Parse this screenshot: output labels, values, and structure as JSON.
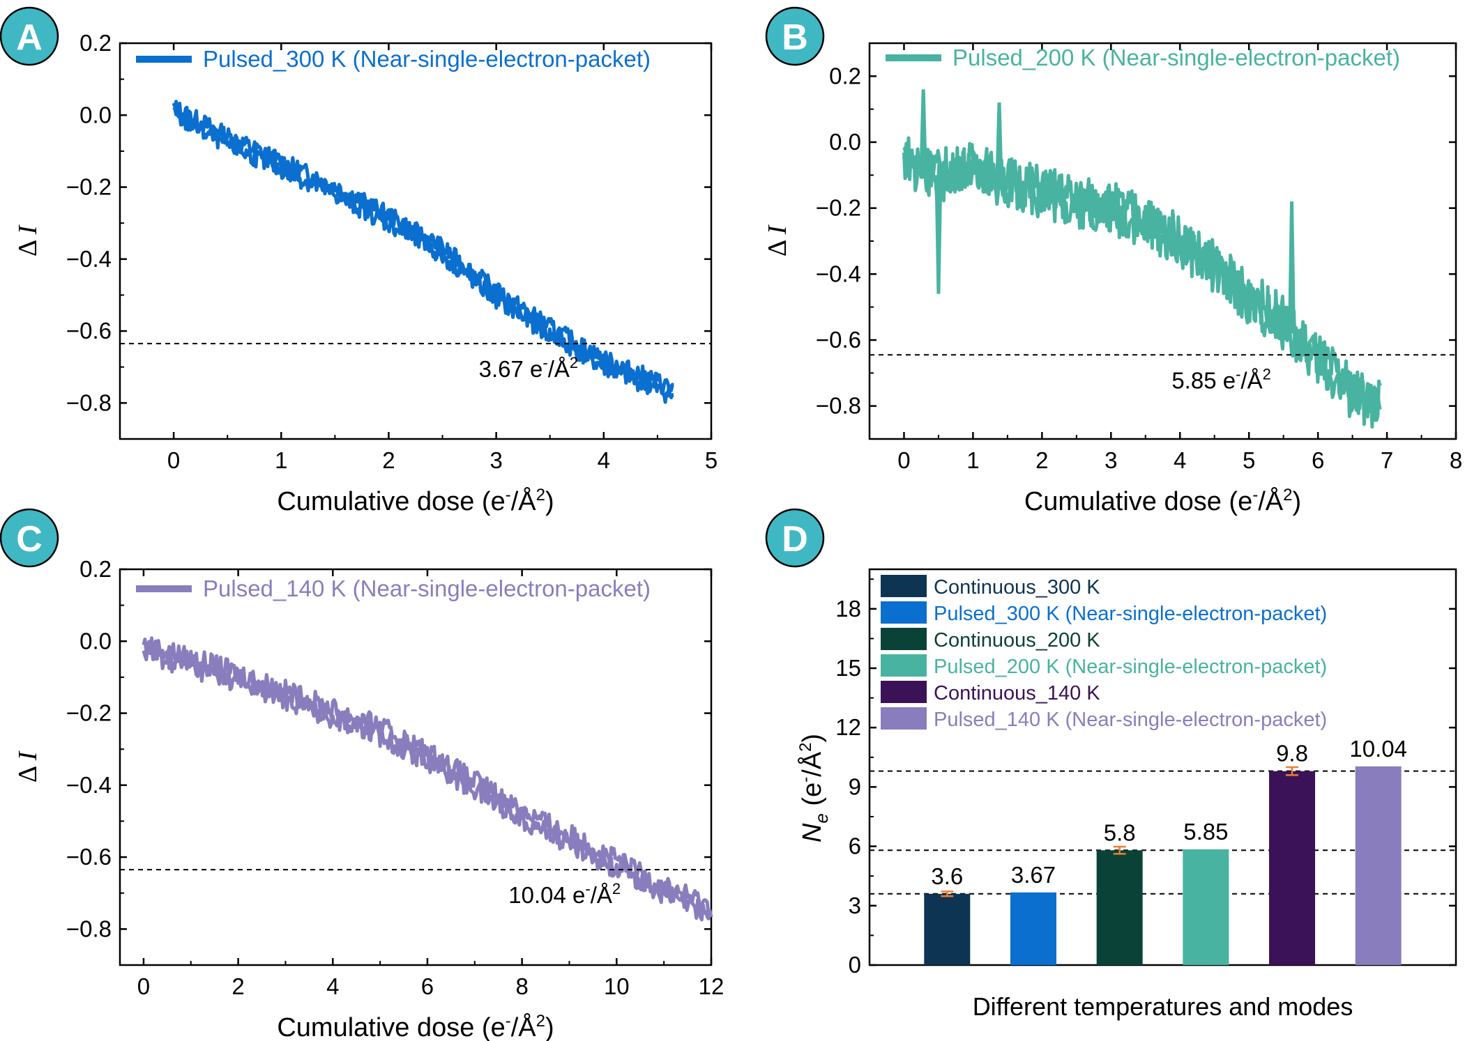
{
  "figure": {
    "panels": [
      {
        "badge": "A",
        "badge_color": "#3fb8c4",
        "sup_unit": "2"
      },
      {
        "badge": "B",
        "badge_color": "#3fb8c4",
        "sup_unit": "2"
      },
      {
        "badge": "C",
        "badge_color": "#3fb8c4",
        "sup_unit": "2"
      },
      {
        "badge": "D",
        "badge_color": "#3fb8c4"
      }
    ]
  },
  "chart_data": [
    {
      "type": "line",
      "panel": "A",
      "xlabel": "Cumulative dose (e⁻/Å²)",
      "ylabel": "Δ I",
      "xlim": [
        -0.5,
        5
      ],
      "ylim": [
        -0.9,
        0.2
      ],
      "xticks": [
        0,
        1,
        2,
        3,
        4,
        5
      ],
      "yticks": [
        0.2,
        0.0,
        -0.2,
        -0.4,
        -0.6,
        -0.8
      ],
      "xtick_labels": [
        "0",
        "1",
        "2",
        "3",
        "4",
        "5"
      ],
      "ytick_labels": [
        "0.2",
        "0.0",
        "−0.2",
        "−0.4",
        "−0.6",
        "−0.8"
      ],
      "threshold_y": -0.635,
      "annotation": {
        "text": "3.67 e",
        "sup1": "-",
        "mid": "/Å",
        "sup2": "2"
      },
      "series": [
        {
          "name": "Pulsed_300 K (Near-single-electron-packet)",
          "color": "#0a6fcf",
          "x": [
            0,
            0.5,
            1.0,
            1.5,
            2.0,
            2.5,
            3.0,
            3.5,
            4.0,
            4.65
          ],
          "y": [
            0.01,
            -0.07,
            -0.14,
            -0.21,
            -0.29,
            -0.38,
            -0.5,
            -0.6,
            -0.69,
            -0.77
          ],
          "noise": 0.025
        }
      ],
      "legend": "top-right"
    },
    {
      "type": "line",
      "panel": "B",
      "xlabel": "Cumulative dose (e⁻/Å²)",
      "ylabel": "Δ I",
      "xlim": [
        -0.5,
        8
      ],
      "ylim": [
        -0.9,
        0.3
      ],
      "xticks": [
        0,
        1,
        2,
        3,
        4,
        5,
        6,
        7,
        8
      ],
      "yticks": [
        0.2,
        0.0,
        -0.2,
        -0.4,
        -0.6,
        -0.8
      ],
      "xtick_labels": [
        "0",
        "1",
        "2",
        "3",
        "4",
        "5",
        "6",
        "7",
        "8"
      ],
      "ytick_labels": [
        "0.2",
        "0.0",
        "−0.2",
        "−0.4",
        "−0.6",
        "−0.8"
      ],
      "threshold_y": -0.645,
      "annotation": {
        "text": "5.85 e",
        "sup1": "-",
        "mid": "/Å",
        "sup2": "2"
      },
      "series": [
        {
          "name": "Pulsed_200 K (Near-single-electron-packet)",
          "color": "#48b3a0",
          "x": [
            0,
            0.5,
            1.0,
            1.5,
            2.0,
            2.5,
            3.0,
            3.5,
            4.0,
            4.5,
            5.0,
            5.5,
            6.0,
            6.5,
            6.9
          ],
          "y": [
            -0.05,
            -0.1,
            -0.08,
            -0.12,
            -0.15,
            -0.18,
            -0.2,
            -0.24,
            -0.3,
            -0.38,
            -0.47,
            -0.55,
            -0.66,
            -0.76,
            -0.8
          ],
          "noise": 0.07
        }
      ],
      "legend": "top-right"
    },
    {
      "type": "line",
      "panel": "C",
      "xlabel": "Cumulative dose (e⁻/Å²)",
      "ylabel": "Δ I",
      "xlim": [
        -0.5,
        12
      ],
      "ylim": [
        -0.9,
        0.2
      ],
      "xticks": [
        0,
        2,
        4,
        6,
        8,
        10,
        12
      ],
      "yticks": [
        0.2,
        0.0,
        -0.2,
        -0.4,
        -0.6,
        -0.8
      ],
      "xtick_labels": [
        "0",
        "2",
        "4",
        "6",
        "8",
        "10",
        "12"
      ],
      "ytick_labels": [
        "0.2",
        "0.0",
        "−0.2",
        "−0.4",
        "−0.6",
        "−0.8"
      ],
      "threshold_y": -0.635,
      "annotation": {
        "text": "10.04 e",
        "sup1": "-",
        "mid": "/Å",
        "sup2": "2"
      },
      "series": [
        {
          "name": "Pulsed_140 K (Near-single-electron-packet)",
          "color": "#8a7dbd",
          "x": [
            0,
            1,
            2,
            3,
            4,
            5,
            6,
            7,
            8,
            9,
            10,
            11,
            12
          ],
          "y": [
            -0.02,
            -0.06,
            -0.1,
            -0.15,
            -0.2,
            -0.25,
            -0.32,
            -0.4,
            -0.48,
            -0.55,
            -0.62,
            -0.69,
            -0.75
          ],
          "noise": 0.03
        }
      ],
      "legend": "top-right"
    },
    {
      "type": "bar",
      "panel": "D",
      "xlabel": "Different temperatures and modes",
      "ylabel": "N",
      "ylabel_sub": "e",
      "ylabel_unit": "(e",
      "ylabel_unit_sup": "-",
      "ylabel_unit_mid": "/Å",
      "ylabel_unit_sup2": "2",
      "ylabel_unit_end": ")",
      "ylim": [
        0,
        20
      ],
      "yticks": [
        0,
        3,
        6,
        9,
        12,
        15,
        18
      ],
      "ytick_labels": [
        "0",
        "3",
        "6",
        "9",
        "12",
        "15",
        "18"
      ],
      "thresholds": [
        3.6,
        5.8,
        9.8
      ],
      "categories": [
        "Continuous_300 K",
        "Pulsed_300 K (Near-single-electron-packet)",
        "Continuous_200 K",
        "Pulsed_200 K (Near-single-electron-packet)",
        "Continuous_140 K",
        "Pulsed_140 K (Near-single-electron-packet)"
      ],
      "values": [
        3.6,
        3.67,
        5.8,
        5.85,
        9.8,
        10.04
      ],
      "value_labels": [
        "3.6",
        "3.67",
        "5.8",
        "5.85",
        "9.8",
        "10.04"
      ],
      "error": [
        0.12,
        null,
        0.18,
        null,
        0.2,
        null
      ],
      "error_color": "#f07e2e",
      "colors": [
        "#0d3452",
        "#0a6fcf",
        "#0b4237",
        "#48b3a0",
        "#3b1258",
        "#8a7dbd"
      ],
      "legend": "top-left"
    }
  ]
}
